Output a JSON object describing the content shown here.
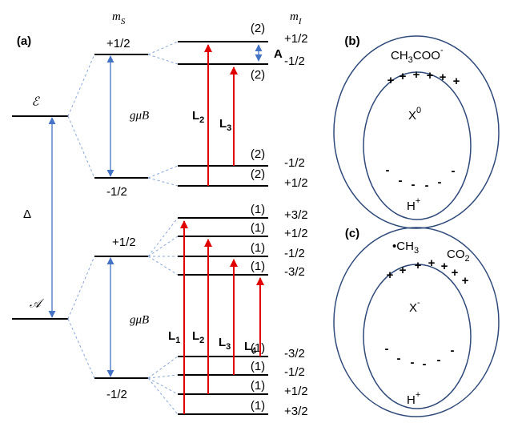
{
  "panel_labels": [
    "(a)",
    "(b)",
    "(c)"
  ],
  "axis_labels": {
    "mS": {
      "base": "m",
      "sub": "S"
    },
    "mI": {
      "base": "m",
      "sub": "I"
    }
  },
  "levels": {
    "E": "ℰ",
    "A": "𝒜",
    "delta": "Δ"
  },
  "ms_labels": [
    "+1/2",
    "-1/2",
    "+1/2",
    "-1/2"
  ],
  "g_mu_B": "gμB",
  "mi_labels": [
    "+1/2",
    "-1/2",
    "-1/2",
    "+1/2",
    "+3/2",
    "+1/2",
    "-1/2",
    "-3/2",
    "-3/2",
    "-1/2",
    "+1/2",
    "+3/2"
  ],
  "multiplicities": [
    "(2)",
    "(2)",
    "(2)",
    "(2)",
    "(1)",
    "(1)",
    "(1)",
    "(1)",
    "(1)",
    "(1)",
    "(1)",
    "(1)"
  ],
  "hyperfine": "A",
  "transitions": {
    "upper": [
      {
        "base": "L",
        "sub": "2"
      },
      {
        "base": "L",
        "sub": "3"
      }
    ],
    "lower": [
      {
        "base": "L",
        "sub": "1"
      },
      {
        "base": "L",
        "sub": "2"
      },
      {
        "base": "L",
        "sub": "3"
      },
      {
        "base": "L",
        "sub": "4"
      }
    ]
  },
  "panel_b": {
    "molecule": {
      "a": "CH",
      "sub": "3",
      "b": "COO",
      "sup": "-"
    },
    "center": {
      "base": "X",
      "sup": "0"
    },
    "bottom": {
      "base": "H",
      "sup": "+"
    },
    "plus": "+",
    "minus": "-"
  },
  "panel_c": {
    "radical": {
      "dot": "•",
      "a": "CH",
      "sub": "3"
    },
    "co2": {
      "a": "CO",
      "sub": "2"
    },
    "center": {
      "base": "X",
      "sup": "-"
    },
    "bottom": {
      "base": "H",
      "sup": "+"
    },
    "plus": "+",
    "minus": "-"
  }
}
